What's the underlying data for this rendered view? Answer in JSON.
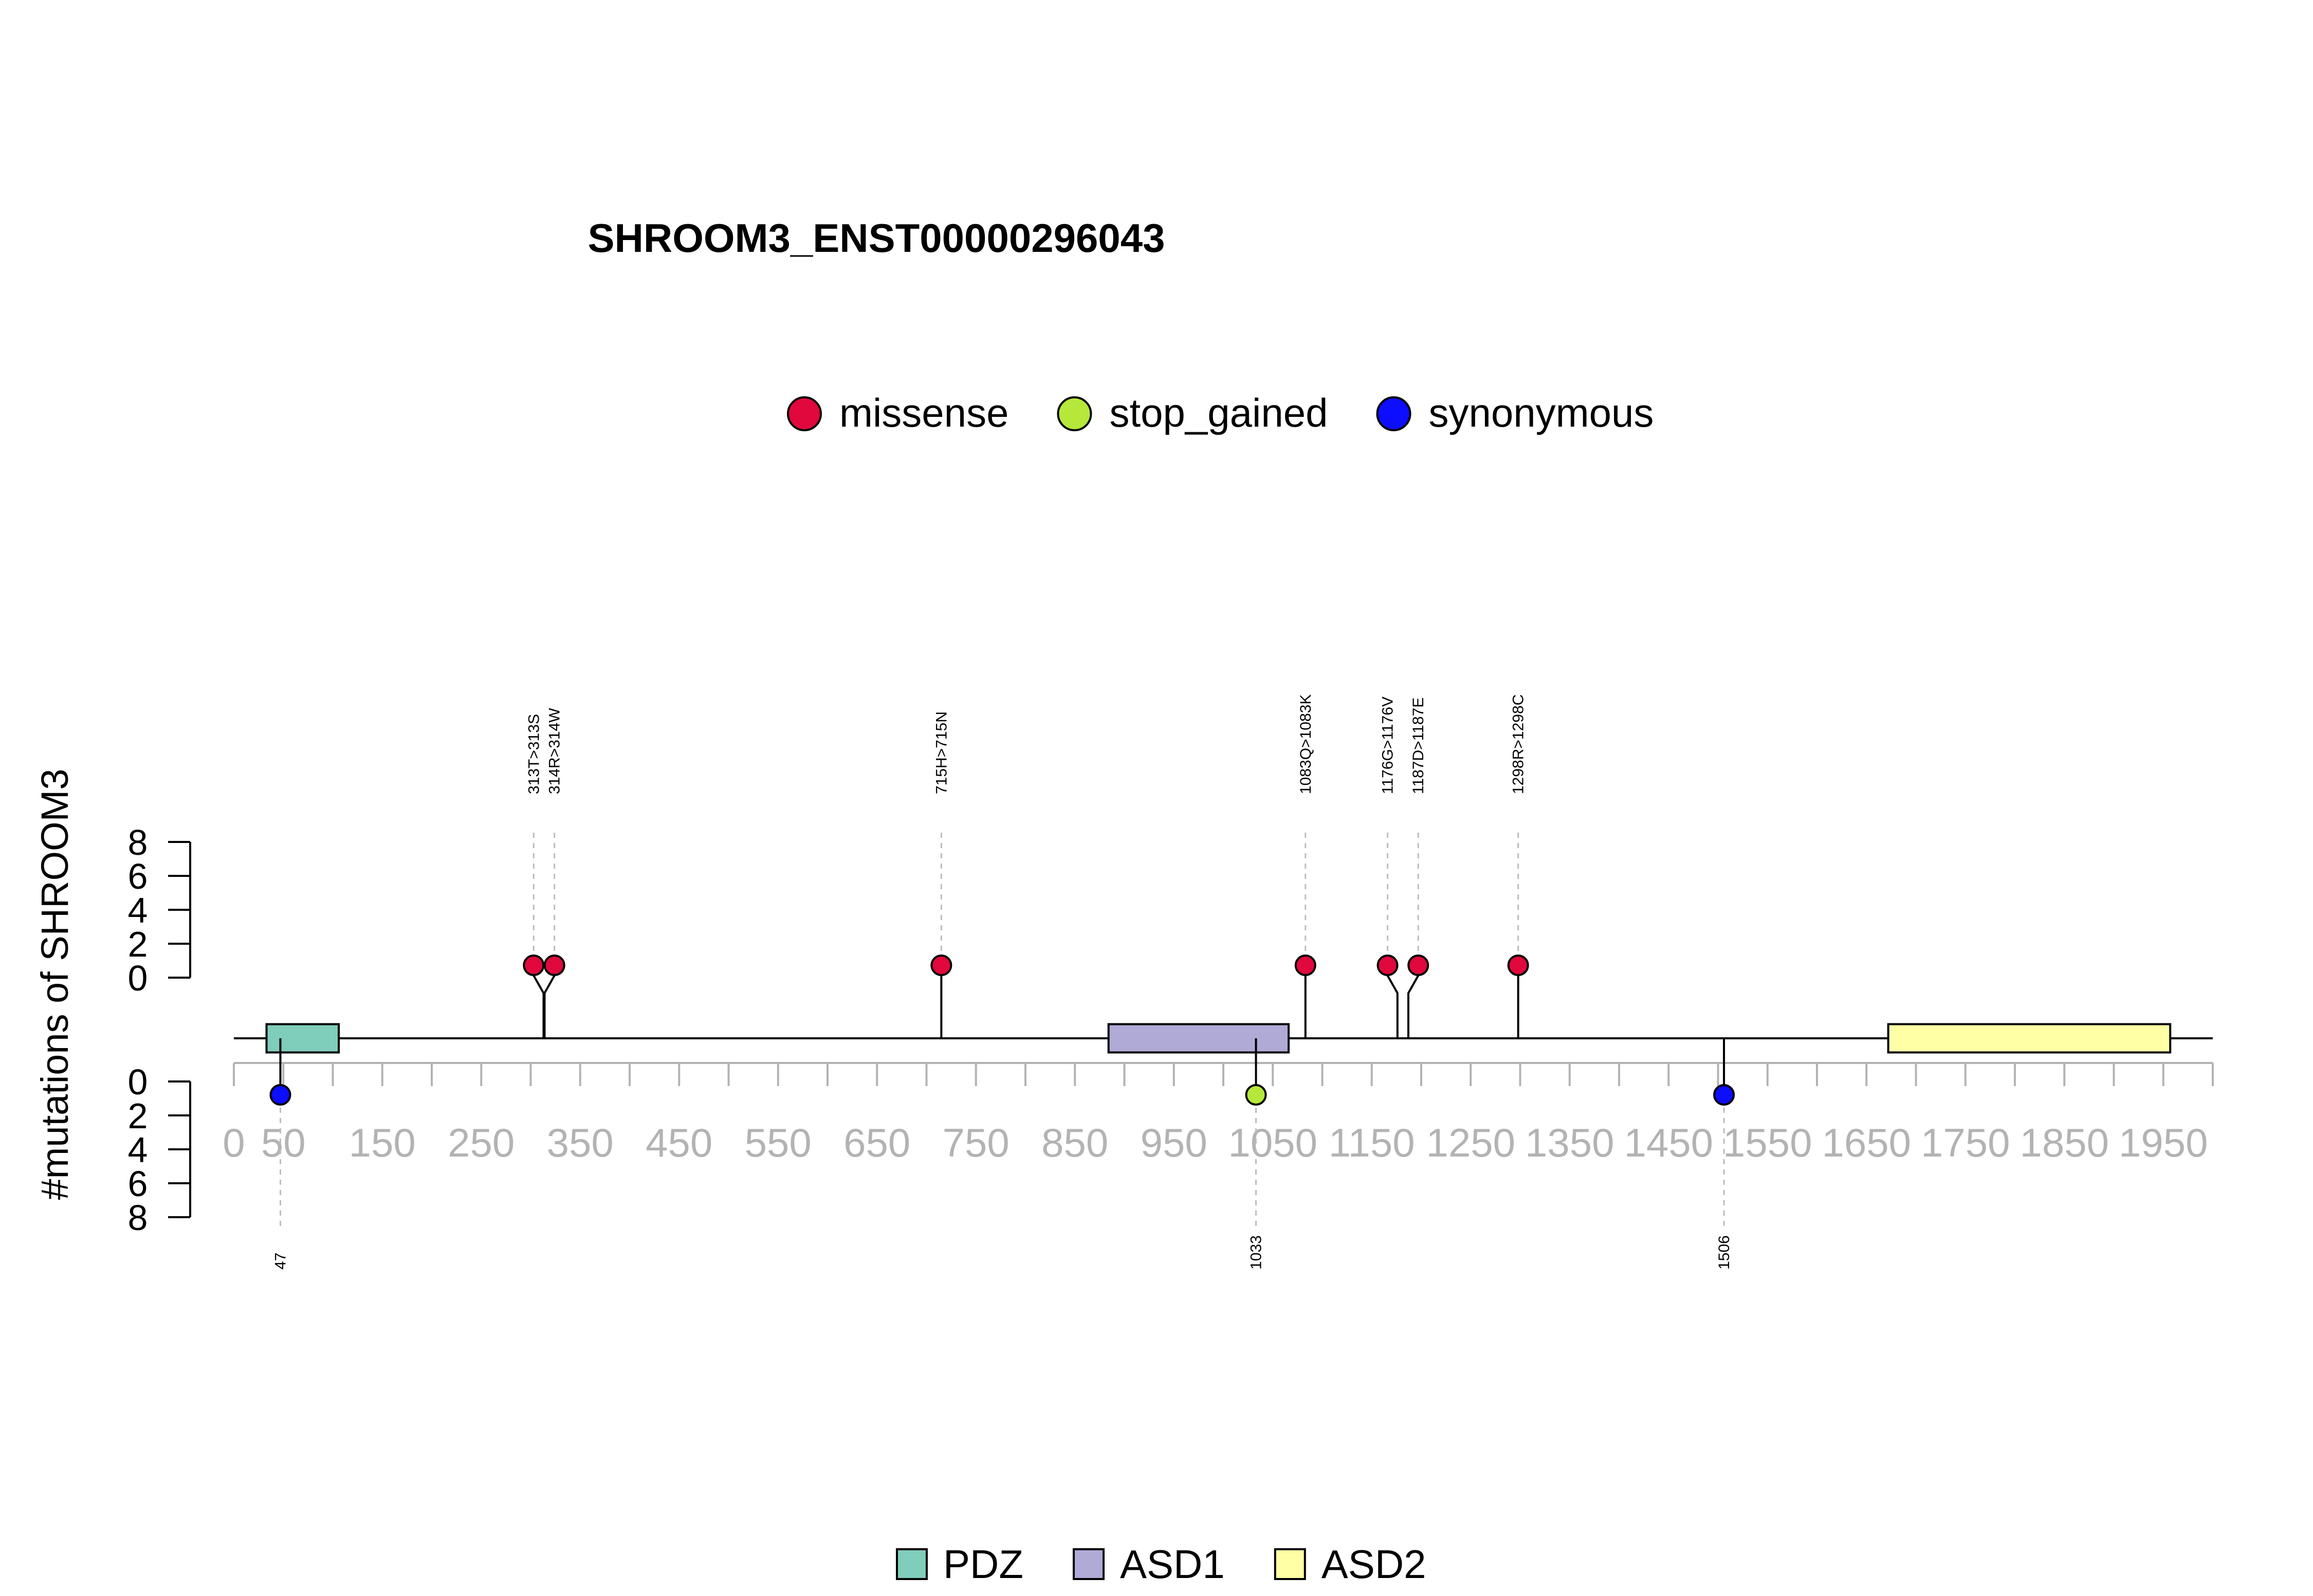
{
  "chart_data": {
    "type": "lollipop",
    "title": "SHROOM3_ENST00000296043",
    "ylabel": "#mutations of SHROOM3",
    "xlim": [
      0,
      2000
    ],
    "x_ticks": [
      0,
      50,
      100,
      150,
      200,
      250,
      300,
      350,
      400,
      450,
      500,
      550,
      600,
      650,
      700,
      750,
      800,
      850,
      900,
      950,
      1000,
      1050,
      1100,
      1150,
      1200,
      1250,
      1300,
      1350,
      1400,
      1450,
      1500,
      1550,
      1600,
      1650,
      1700,
      1750,
      1800,
      1850,
      1900,
      1950,
      2000
    ],
    "x_tick_labels": [
      "0",
      "50",
      "150",
      "250",
      "350",
      "450",
      "550",
      "650",
      "750",
      "850",
      "950",
      "1050",
      "1150",
      "1250",
      "1350",
      "1450",
      "1550",
      "1650",
      "1750",
      "1850",
      "1950"
    ],
    "x_label_positions": [
      0,
      50,
      150,
      250,
      350,
      450,
      550,
      650,
      750,
      850,
      950,
      1050,
      1150,
      1250,
      1350,
      1450,
      1550,
      1650,
      1750,
      1850,
      1950
    ],
    "upper_axis": {
      "ylim": [
        0,
        8
      ],
      "ticks": [
        "0",
        "2",
        "4",
        "6",
        "8"
      ]
    },
    "lower_axis": {
      "ylim": [
        0,
        8
      ],
      "ticks": [
        "0",
        "2",
        "4",
        "6",
        "8"
      ]
    },
    "legend_variants": [
      {
        "name": "missense",
        "color": "#e0083c"
      },
      {
        "name": "stop_gained",
        "color": "#b5e83a"
      },
      {
        "name": "synonymous",
        "color": "#0d0dff"
      }
    ],
    "legend_domains": [
      {
        "name": "PDZ",
        "color": "#7fcdbb"
      },
      {
        "name": "ASD1",
        "color": "#b0aad6"
      },
      {
        "name": "ASD2",
        "color": "#ffffa5"
      }
    ],
    "domains": [
      {
        "name": "PDZ",
        "start": 33,
        "end": 106,
        "color": "#7fcdbb"
      },
      {
        "name": "ASD1",
        "start": 884,
        "end": 1066,
        "color": "#b0aad6"
      },
      {
        "name": "ASD2",
        "start": 1672,
        "end": 1957,
        "color": "#ffffa5"
      }
    ],
    "upper_mutations": [
      {
        "label": "313T>313S",
        "position": 313,
        "count": 1,
        "type": "missense",
        "display_x": 303
      },
      {
        "label": "314R>314W",
        "position": 314,
        "count": 1,
        "type": "missense",
        "display_x": 324
      },
      {
        "label": "715H>715N",
        "position": 715,
        "count": 1,
        "type": "missense",
        "display_x": 715
      },
      {
        "label": "1083Q>1083K",
        "position": 1083,
        "count": 1,
        "type": "missense",
        "display_x": 1083
      },
      {
        "label": "1176G>1176V",
        "position": 1176,
        "count": 1,
        "type": "missense",
        "display_x": 1166
      },
      {
        "label": "1187D>1187E",
        "position": 1187,
        "count": 1,
        "type": "missense",
        "display_x": 1197
      },
      {
        "label": "1298R>1298C",
        "position": 1298,
        "count": 1,
        "type": "missense",
        "display_x": 1298
      }
    ],
    "lower_mutations": [
      {
        "label": "47",
        "position": 47,
        "count": 1,
        "type": "synonymous"
      },
      {
        "label": "1033",
        "position": 1033,
        "count": 1,
        "type": "stop_gained"
      },
      {
        "label": "1506",
        "position": 1506,
        "count": 1,
        "type": "synonymous"
      }
    ]
  }
}
